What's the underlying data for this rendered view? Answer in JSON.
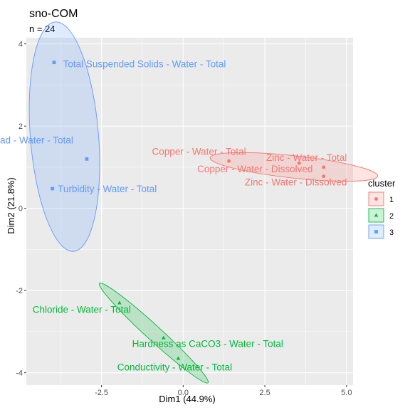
{
  "chart_data": {
    "type": "scatter",
    "title": "sno-COM",
    "subtitle": "n = 24",
    "xlabel": "Dim1 (44.9%)",
    "ylabel": "Dim2 (21.8%)",
    "xlim": [
      -4.8,
      5.2
    ],
    "ylim": [
      -4.3,
      4.15
    ],
    "xticks": [
      -2.5,
      0.0,
      2.5,
      5.0
    ],
    "xtick_labels": [
      "-2.5",
      "0.0",
      "2.5",
      "5.0"
    ],
    "yticks": [
      -4,
      -2,
      0,
      2,
      4
    ],
    "ytick_labels": [
      "-4",
      "-2",
      "0",
      "2",
      "4"
    ],
    "grid": true,
    "legend": {
      "title": "cluster",
      "position": "right",
      "entries": [
        "1",
        "2",
        "3"
      ]
    },
    "colors": {
      "1": "#F8766D",
      "2": "#00BA38",
      "3": "#619CFF",
      "panel": "#EBEBEB",
      "grid": "#FFFFFF"
    },
    "series": [
      {
        "name": "1",
        "points": [
          {
            "label": "Copper - Water - Total",
            "x": 1.4,
            "y": 1.15
          },
          {
            "label": "Zinc - Water - Total",
            "x": 4.3,
            "y": 1.0
          },
          {
            "label": "Copper - Water - Dissolved",
            "x": 3.55,
            "y": 1.1
          },
          {
            "label": "Zinc - Water - Dissolved",
            "x": 4.3,
            "y": 0.78
          }
        ]
      },
      {
        "name": "2",
        "points": [
          {
            "label": "Chloride - Water - Total",
            "x": -1.95,
            "y": -2.3
          },
          {
            "label": "Hardness as CaCO3 - Water - Total",
            "x": -0.6,
            "y": -3.15
          },
          {
            "label": "Conductivity - Water - Total",
            "x": -0.15,
            "y": -3.65
          }
        ]
      },
      {
        "name": "3",
        "points": [
          {
            "label": "Total Suspended Solids - Water - Total",
            "x": -3.95,
            "y": 3.55
          },
          {
            "label": "Lead - Water - Total",
            "x": -2.95,
            "y": 1.2
          },
          {
            "label": "Turbidity - Water - Total",
            "x": -4.0,
            "y": 0.48
          }
        ]
      }
    ]
  }
}
